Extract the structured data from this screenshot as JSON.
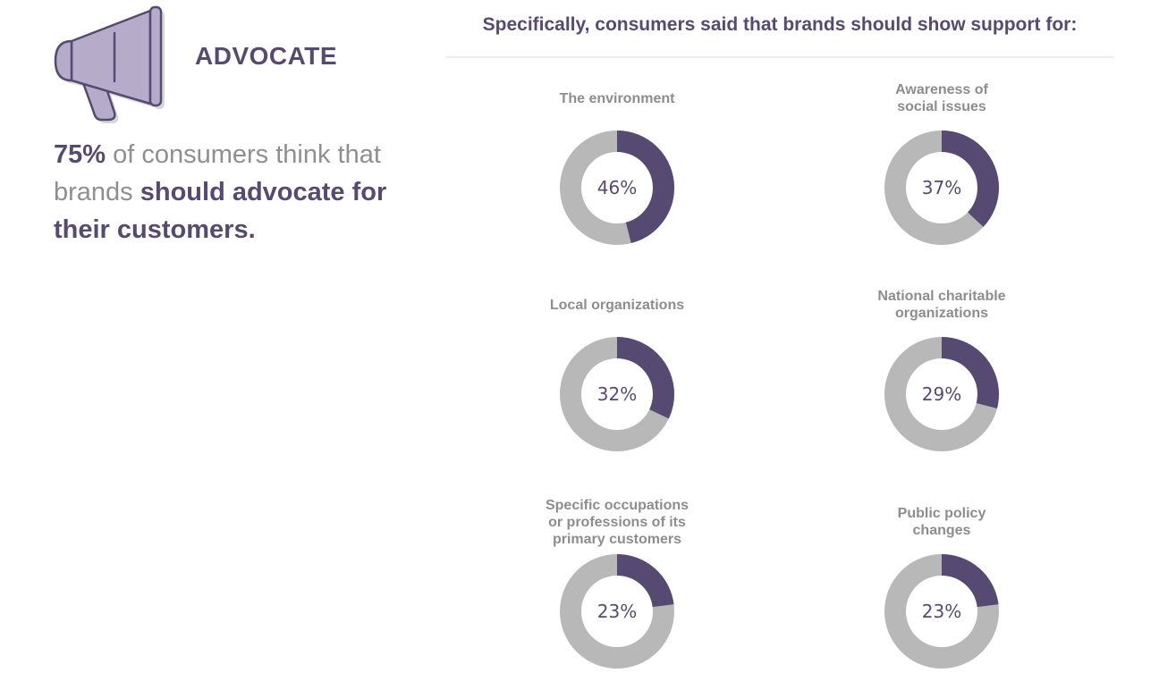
{
  "left_panel": {
    "icon": "megaphone-icon",
    "headline": "ADVOCATE",
    "stat": {
      "value": "75%",
      "text_1": " of consumers think that brands ",
      "emphasis": "should advocate for their customers."
    }
  },
  "heading": "Specifically, consumers said that brands should show support for:",
  "colors": {
    "accent": "#574a72",
    "track": "#b8b8b8",
    "label": "#8d8d8d",
    "megaphone_fill": "#b6acc9"
  },
  "chart_data": {
    "type": "pie",
    "variant": "donut",
    "categories": [
      "The environment",
      "Awareness of\nsocial issues",
      "Local organizations",
      "National charitable\norganizations",
      "Specific occupations\nor professions of its\nprimary customers",
      "Public policy\nchanges"
    ],
    "values": [
      46,
      37,
      32,
      29,
      23,
      23
    ],
    "value_labels": [
      "46%",
      "37%",
      "32%",
      "29%",
      "23%",
      "23%"
    ],
    "unit": "%",
    "max": 100
  }
}
